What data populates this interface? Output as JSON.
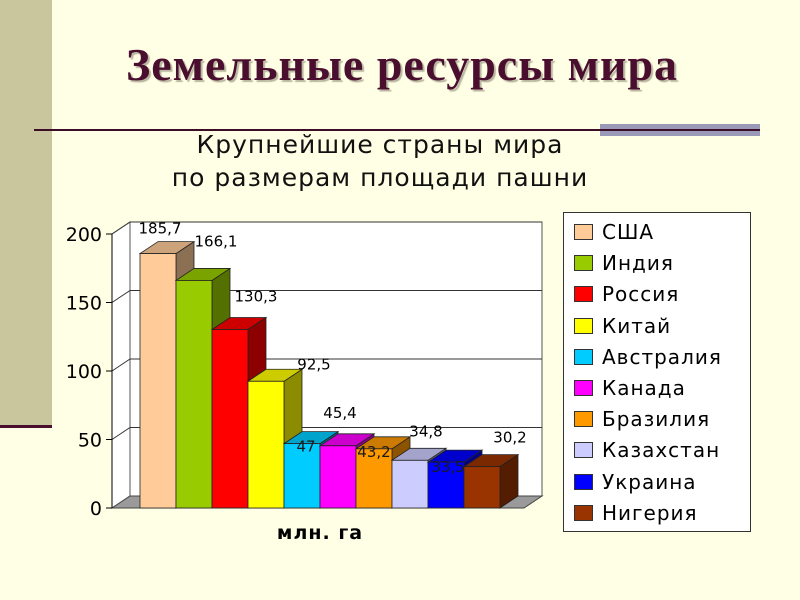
{
  "slide": {
    "title": "Земельные  ресурсы  мира",
    "subtitle_line1": "Крупнейшие  страны  мира",
    "subtitle_line2": "по  размерам  площади  пашни"
  },
  "colors": {
    "background": "#ffffe5",
    "accent_bar": "#c9c59c",
    "title": "#4a0f2e"
  },
  "chart_data": {
    "type": "bar",
    "style": "3d-clustered",
    "xlabel": "млн. га",
    "ylabel": "",
    "ylim": [
      0,
      200
    ],
    "yticks": [
      "0",
      "50",
      "100",
      "150",
      "200"
    ],
    "grid": true,
    "legend_position": "right",
    "series": [
      {
        "name": "США",
        "value": 185.7,
        "label": "185,7",
        "color": "#ffcc99"
      },
      {
        "name": "Индия",
        "value": 166.1,
        "label": "166,1",
        "color": "#99cc00"
      },
      {
        "name": "Россия",
        "value": 130.3,
        "label": "130,3",
        "color": "#ff0000"
      },
      {
        "name": "Китай",
        "value": 92.5,
        "label": "92,5",
        "color": "#ffff00"
      },
      {
        "name": "Австралия",
        "value": 47,
        "label": "47",
        "color": "#00ccff"
      },
      {
        "name": "Канада",
        "value": 45.4,
        "label": "45,4",
        "color": "#ff00ff"
      },
      {
        "name": "Бразилия",
        "value": 43.2,
        "label": "43,2",
        "color": "#ff9900"
      },
      {
        "name": "Казахстан",
        "value": 34.8,
        "label": "34,8",
        "color": "#ccccff"
      },
      {
        "name": "Украина",
        "value": 33.5,
        "label": "33,5",
        "color": "#0000ff"
      },
      {
        "name": "Нигерия",
        "value": 30.2,
        "label": "30,2",
        "color": "#993300"
      }
    ]
  }
}
